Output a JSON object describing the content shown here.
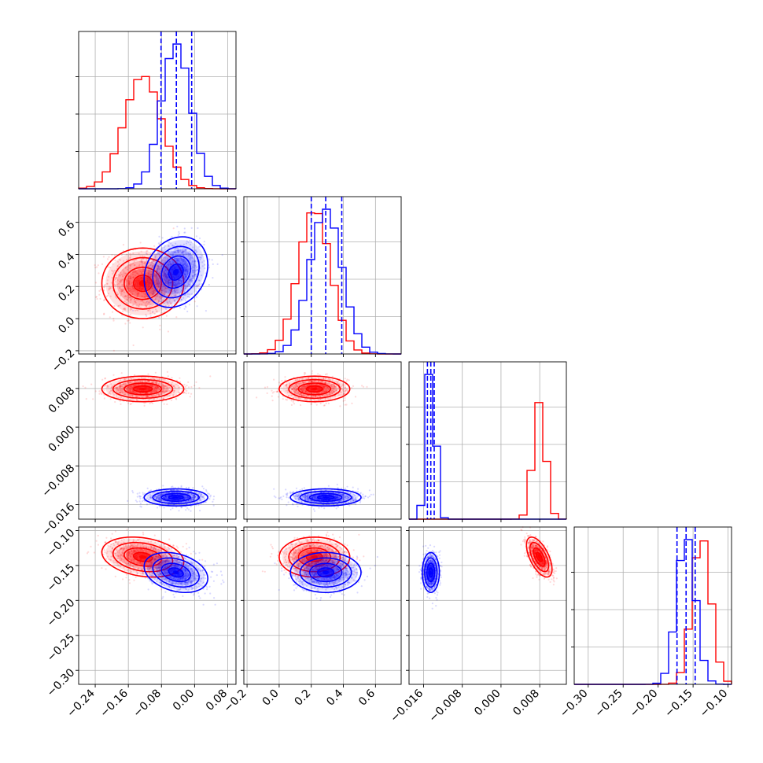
{
  "chart_data": {
    "type": "corner",
    "grid": true,
    "parameters": [
      {
        "range": [
          -0.28,
          0.1
        ],
        "ticks": [
          -0.24,
          -0.16,
          -0.08,
          0.0,
          0.08
        ],
        "tick_labels": [
          "−0.24",
          "−0.16",
          "−0.08",
          "0.00",
          "0.08"
        ]
      },
      {
        "range": [
          -0.22,
          0.76
        ],
        "ticks": [
          -0.2,
          0.0,
          0.2,
          0.4,
          0.6
        ],
        "tick_labels": [
          "−0.2",
          "0.0",
          "0.2",
          "0.4",
          "0.6"
        ]
      },
      {
        "range": [
          -0.019,
          0.0135
        ],
        "ticks": [
          -0.016,
          -0.008,
          0.0,
          0.008
        ],
        "tick_labels": [
          "−0.016",
          "−0.008",
          "0.000",
          "0.008"
        ]
      },
      {
        "range": [
          -0.32,
          -0.095
        ],
        "ticks": [
          -0.3,
          -0.25,
          -0.2,
          -0.15,
          -0.1
        ],
        "tick_labels": [
          "−0.30",
          "−0.25",
          "−0.20",
          "−0.15",
          "−0.10"
        ]
      }
    ],
    "series": [
      {
        "color": "#ff0000",
        "mean": [
          -0.125,
          0.22,
          0.0079,
          -0.138
        ],
        "std": [
          0.045,
          0.1,
          0.0012,
          0.013
        ],
        "corr": [
          [
            1,
            0,
            0,
            -0.25
          ],
          [
            0,
            1,
            0,
            0
          ],
          [
            0,
            0,
            1,
            -0.6
          ],
          [
            -0.25,
            0,
            -0.6,
            1
          ]
        ]
      },
      {
        "color": "#0000ff",
        "mean": [
          -0.045,
          0.29,
          -0.0145,
          -0.16
        ],
        "std": [
          0.035,
          0.1,
          0.0008,
          0.013
        ],
        "corr": [
          [
            1,
            0.2,
            0,
            -0.3
          ],
          [
            0.2,
            1,
            0,
            0
          ],
          [
            0,
            0,
            1,
            0
          ],
          [
            -0.3,
            0,
            0,
            1
          ]
        ]
      }
    ],
    "quantile_lines": {
      "color": "#0000ff",
      "values": [
        [
          -0.081,
          -0.044,
          -0.007
        ],
        [
          0.2,
          0.29,
          0.39
        ],
        [
          -0.0152,
          -0.0145,
          -0.0138
        ],
        [
          -0.173,
          -0.16,
          -0.147
        ]
      ]
    }
  }
}
